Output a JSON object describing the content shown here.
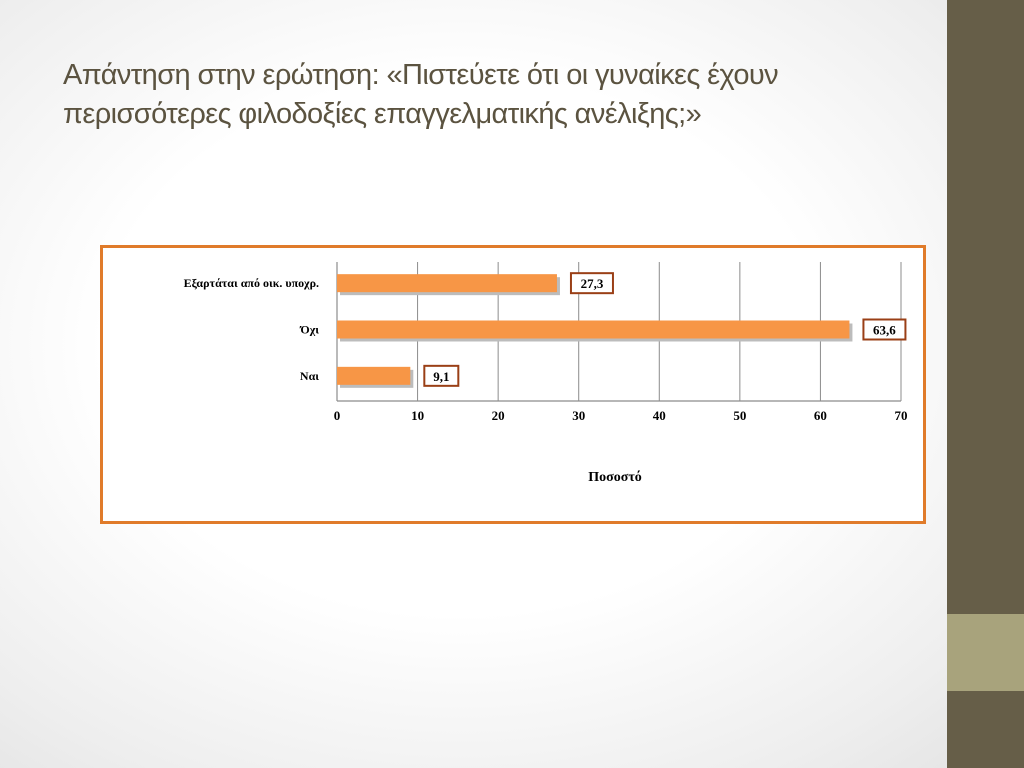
{
  "slide": {
    "title_line1": "Απάντηση στην ερώτηση: «Πιστεύετε ότι οι γυναίκες έχουν",
    "title_line2": "περισσότερες φιλοδοξίες επαγγελματικής ανέλιξης;»"
  },
  "colors": {
    "bar": "#f79646",
    "frame": "#e07b2a",
    "sidebar": "#665e48",
    "sidebar_accent": "#a8a37c",
    "title": "#5b5340"
  },
  "chart_data": {
    "type": "bar",
    "orientation": "horizontal",
    "categories": [
      "Εξαρτάται από οικ. υποχρ.",
      "Όχι",
      "Ναι"
    ],
    "values": [
      27.3,
      63.6,
      9.1
    ],
    "value_labels": [
      "27,3",
      "63,6",
      "9,1"
    ],
    "xlabel": "Ποσοστό",
    "ylabel": "",
    "xlim": [
      0,
      70
    ],
    "x_ticks": [
      "0",
      "10",
      "20",
      "30",
      "40",
      "50",
      "60",
      "70"
    ],
    "grid": "vertical",
    "legend": "none"
  }
}
